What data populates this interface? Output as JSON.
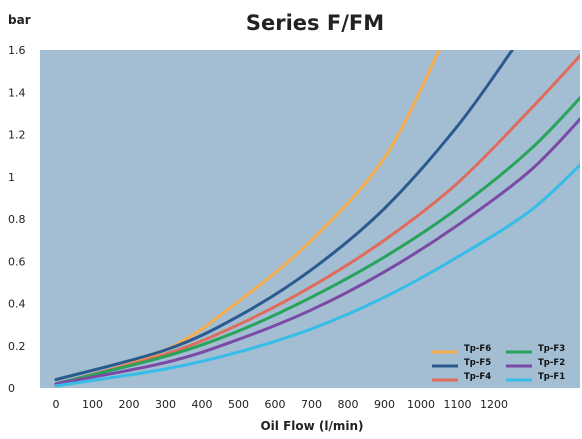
{
  "chart_data": {
    "type": "line",
    "title": "Series F/FM",
    "ylabel": "bar",
    "xlabel": "Oil Flow (l/min)",
    "xlim": [
      0,
      1500
    ],
    "ylim": [
      0,
      1.6
    ],
    "x_ticks": [
      "0",
      "100",
      "200",
      "300",
      "400",
      "500",
      "600",
      "700",
      "800",
      "900",
      "1000",
      "1100",
      "1200"
    ],
    "y_ticks": [
      "0",
      "0.2",
      "0.4",
      "0.6",
      "0.8",
      "1",
      "1.2",
      "1.4",
      "1.6"
    ],
    "grid": false,
    "legend_position": "bottom-right",
    "series": [
      {
        "name": "Tp-F6",
        "color": "#f6ad4c",
        "x": [
          0,
          300,
          500,
          700,
          900,
          1050
        ],
        "y": [
          0.01,
          0.18,
          0.41,
          0.7,
          1.09,
          1.6
        ]
      },
      {
        "name": "Tp-F5",
        "color": "#2a5a8e",
        "x": [
          0,
          300,
          500,
          700,
          900,
          1100,
          1250
        ],
        "y": [
          0.04,
          0.18,
          0.34,
          0.56,
          0.85,
          1.24,
          1.6
        ]
      },
      {
        "name": "Tp-F4",
        "color": "#e06c5c",
        "x": [
          0,
          300,
          500,
          700,
          900,
          1100,
          1300,
          1450
        ],
        "y": [
          0.02,
          0.16,
          0.3,
          0.48,
          0.7,
          0.97,
          1.32,
          1.6
        ]
      },
      {
        "name": "Tp-F3",
        "color": "#27a35a",
        "x": [
          0,
          300,
          500,
          700,
          900,
          1100,
          1300,
          1450
        ],
        "y": [
          0.02,
          0.15,
          0.27,
          0.43,
          0.62,
          0.85,
          1.13,
          1.4
        ]
      },
      {
        "name": "Tp-F2",
        "color": "#7a4aa6",
        "x": [
          0,
          300,
          500,
          700,
          900,
          1100,
          1300,
          1450
        ],
        "y": [
          0.02,
          0.12,
          0.23,
          0.37,
          0.55,
          0.77,
          1.03,
          1.3
        ]
      },
      {
        "name": "Tp-F1",
        "color": "#35bde8",
        "x": [
          0,
          300,
          500,
          700,
          900,
          1100,
          1300,
          1450
        ],
        "y": [
          0.01,
          0.09,
          0.17,
          0.28,
          0.43,
          0.62,
          0.84,
          1.08
        ]
      }
    ]
  }
}
